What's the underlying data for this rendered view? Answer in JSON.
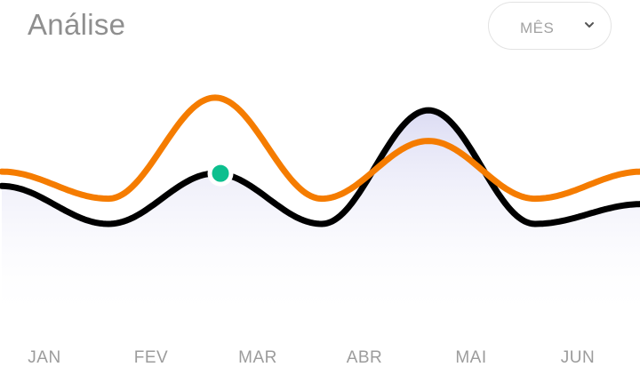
{
  "header": {
    "title": "Análise",
    "period": {
      "selected": "MÊS",
      "icon": "chevron-down-icon"
    }
  },
  "chart_data": {
    "type": "line",
    "categories": [
      "JAN",
      "FEV",
      "MAR",
      "ABR",
      "MAI",
      "JUN"
    ],
    "x": [
      -0.4,
      0.6,
      1.6,
      2.6,
      3.6,
      4.6,
      5.6
    ],
    "ylim": [
      0,
      100
    ],
    "series": [
      {
        "values": [
          55,
          34,
          62,
          34,
          97,
          34,
          45
        ],
        "color": "#000000",
        "fill": "#d8d8f2"
      },
      {
        "values": [
          63,
          48,
          104,
          48,
          80,
          48,
          63
        ],
        "color": "#f57c00"
      }
    ],
    "highlight": {
      "series": 0,
      "x": 1.65,
      "y": 62,
      "color": "#0cbf8e"
    },
    "grid": false,
    "legend": false
  }
}
